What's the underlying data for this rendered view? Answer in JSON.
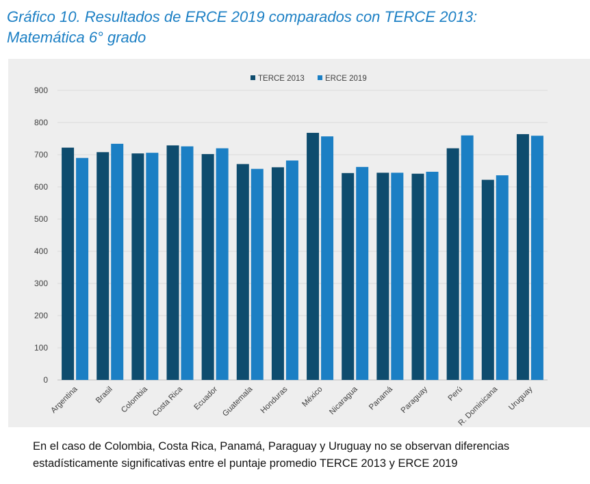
{
  "header": {
    "title_line1": "Gráfico 10. Resultados de ERCE 2019 comparados con TERCE 2013:",
    "title_line2": "Matemática 6° grado"
  },
  "chart_data": {
    "type": "bar",
    "categories": [
      "Argentina",
      "Brasil",
      "Colombia",
      "Costa Rica",
      "Ecuador",
      "Guatemala",
      "Honduras",
      "México",
      "Nicaragua",
      "Panamá",
      "Paraguay",
      "Perú",
      "R. Dominicana",
      "Uruguay"
    ],
    "series": [
      {
        "name": "TERCE 2013",
        "color": "#0e4c6e",
        "values": [
          722,
          708,
          704,
          729,
          702,
          671,
          661,
          768,
          643,
          644,
          641,
          720,
          622,
          764
        ]
      },
      {
        "name": "ERCE 2019",
        "color": "#1b7fc4",
        "values": [
          690,
          734,
          706,
          726,
          720,
          656,
          682,
          757,
          662,
          644,
          647,
          760,
          636,
          759
        ]
      }
    ],
    "ylim": [
      0,
      900
    ],
    "yticks": [
      "900",
      "800",
      "700",
      "600",
      "500",
      "400",
      "300",
      "200",
      "100",
      "0"
    ],
    "grid": true,
    "legend": "top-center",
    "title": "",
    "xlabel": "",
    "ylabel": ""
  },
  "footer": {
    "note_line1": "En el caso de Colombia, Costa Rica, Panamá, Paraguay y Uruguay no se observan diferencias",
    "note_line2": "estadísticamente significativas entre el puntaje promedio TERCE 2013 y ERCE 2019"
  }
}
